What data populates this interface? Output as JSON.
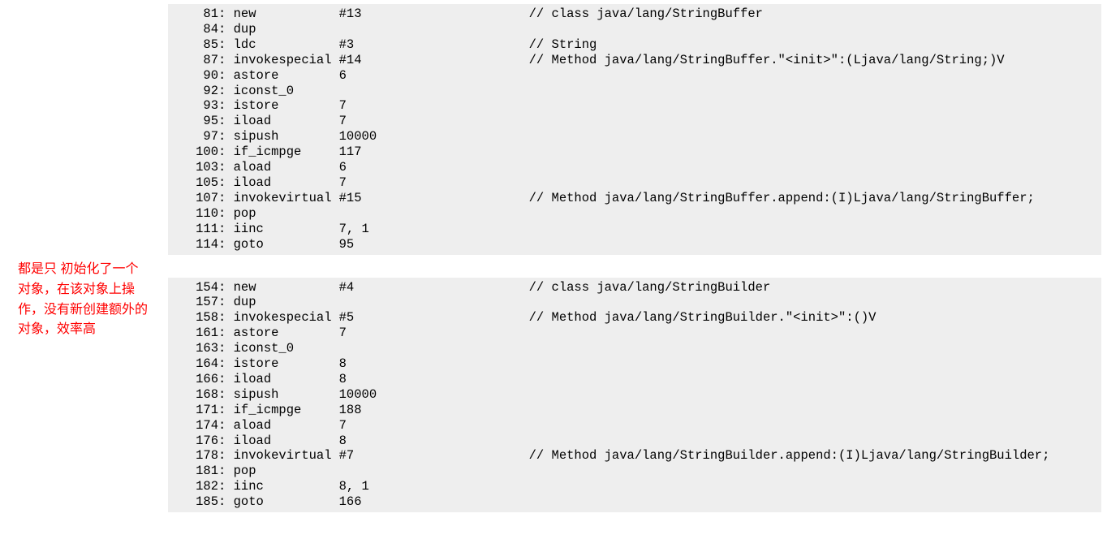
{
  "annotation": {
    "text": "都是只 初始化了一个对象，在该对象上操作，没有新创建额外的对象，效率高",
    "color": "#ff0000"
  },
  "block1": {
    "background": "#eeeeee",
    "lines": [
      {
        "offset": "81",
        "instr": "new",
        "operand": "#13",
        "comment": "// class java/lang/StringBuffer"
      },
      {
        "offset": "84",
        "instr": "dup",
        "operand": "",
        "comment": ""
      },
      {
        "offset": "85",
        "instr": "ldc",
        "operand": "#3",
        "comment": "// String"
      },
      {
        "offset": "87",
        "instr": "invokespecial",
        "operand": "#14",
        "comment": "// Method java/lang/StringBuffer.\"<init>\":(Ljava/lang/String;)V"
      },
      {
        "offset": "90",
        "instr": "astore",
        "operand": "6",
        "comment": ""
      },
      {
        "offset": "92",
        "instr": "iconst_0",
        "operand": "",
        "comment": ""
      },
      {
        "offset": "93",
        "instr": "istore",
        "operand": "7",
        "comment": ""
      },
      {
        "offset": "95",
        "instr": "iload",
        "operand": "7",
        "comment": ""
      },
      {
        "offset": "97",
        "instr": "sipush",
        "operand": "10000",
        "comment": ""
      },
      {
        "offset": "100",
        "instr": "if_icmpge",
        "operand": "117",
        "comment": ""
      },
      {
        "offset": "103",
        "instr": "aload",
        "operand": "6",
        "comment": ""
      },
      {
        "offset": "105",
        "instr": "iload",
        "operand": "7",
        "comment": ""
      },
      {
        "offset": "107",
        "instr": "invokevirtual",
        "operand": "#15",
        "comment": "// Method java/lang/StringBuffer.append:(I)Ljava/lang/StringBuffer;"
      },
      {
        "offset": "110",
        "instr": "pop",
        "operand": "",
        "comment": ""
      },
      {
        "offset": "111",
        "instr": "iinc",
        "operand": "7, 1",
        "comment": ""
      },
      {
        "offset": "114",
        "instr": "goto",
        "operand": "95",
        "comment": ""
      }
    ]
  },
  "block2": {
    "background": "#eeeeee",
    "lines": [
      {
        "offset": "154",
        "instr": "new",
        "operand": "#4",
        "comment": "// class java/lang/StringBuilder"
      },
      {
        "offset": "157",
        "instr": "dup",
        "operand": "",
        "comment": ""
      },
      {
        "offset": "158",
        "instr": "invokespecial",
        "operand": "#5",
        "comment": "// Method java/lang/StringBuilder.\"<init>\":()V"
      },
      {
        "offset": "161",
        "instr": "astore",
        "operand": "7",
        "comment": ""
      },
      {
        "offset": "163",
        "instr": "iconst_0",
        "operand": "",
        "comment": ""
      },
      {
        "offset": "164",
        "instr": "istore",
        "operand": "8",
        "comment": ""
      },
      {
        "offset": "166",
        "instr": "iload",
        "operand": "8",
        "comment": ""
      },
      {
        "offset": "168",
        "instr": "sipush",
        "operand": "10000",
        "comment": ""
      },
      {
        "offset": "171",
        "instr": "if_icmpge",
        "operand": "188",
        "comment": ""
      },
      {
        "offset": "174",
        "instr": "aload",
        "operand": "7",
        "comment": ""
      },
      {
        "offset": "176",
        "instr": "iload",
        "operand": "8",
        "comment": ""
      },
      {
        "offset": "178",
        "instr": "invokevirtual",
        "operand": "#7",
        "comment": "// Method java/lang/StringBuilder.append:(I)Ljava/lang/StringBuilder;"
      },
      {
        "offset": "181",
        "instr": "pop",
        "operand": "",
        "comment": ""
      },
      {
        "offset": "182",
        "instr": "iinc",
        "operand": "8, 1",
        "comment": ""
      },
      {
        "offset": "185",
        "instr": "goto",
        "operand": "166",
        "comment": ""
      }
    ]
  }
}
